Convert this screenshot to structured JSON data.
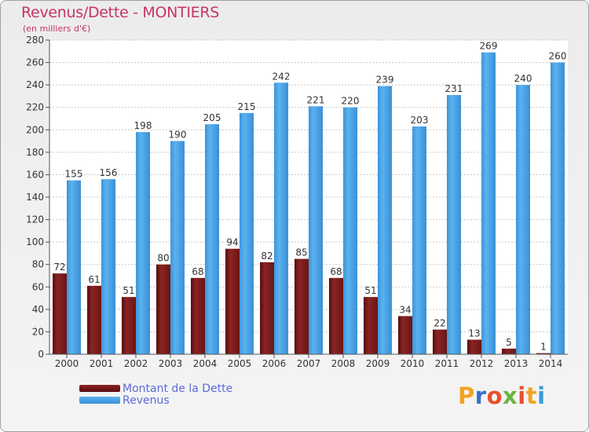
{
  "chart_data": {
    "type": "bar",
    "title": "Revenus/Dette - MONTIERS",
    "subtitle": "(en milliers d'€)",
    "xlabel": "",
    "ylabel": "",
    "ylim": [
      0,
      280
    ],
    "yticks": [
      0,
      20,
      40,
      60,
      80,
      100,
      120,
      140,
      160,
      180,
      200,
      220,
      240,
      260,
      280
    ],
    "grid": true,
    "legend_position": "bottom-left",
    "categories": [
      "2000",
      "2001",
      "2002",
      "2003",
      "2004",
      "2005",
      "2006",
      "2007",
      "2008",
      "2009",
      "2010",
      "2011",
      "2012",
      "2013",
      "2014"
    ],
    "series": [
      {
        "name": "Montant de la Dette",
        "color": "#7a1a1a",
        "values": [
          72,
          61,
          51,
          80,
          68,
          94,
          82,
          85,
          68,
          51,
          34,
          22,
          13,
          5,
          1
        ]
      },
      {
        "name": "Revenus",
        "color": "#4aa3e6",
        "values": [
          155,
          156,
          198,
          190,
          205,
          215,
          242,
          221,
          220,
          239,
          203,
          231,
          269,
          240,
          260
        ]
      }
    ]
  },
  "logo": {
    "text": "Proxiti",
    "letter_colors": [
      "#f2a323",
      "#3b6fc8",
      "#e94e2c",
      "#6ab540",
      "#e94e2c",
      "#f2a323",
      "#3b9bd6"
    ]
  }
}
